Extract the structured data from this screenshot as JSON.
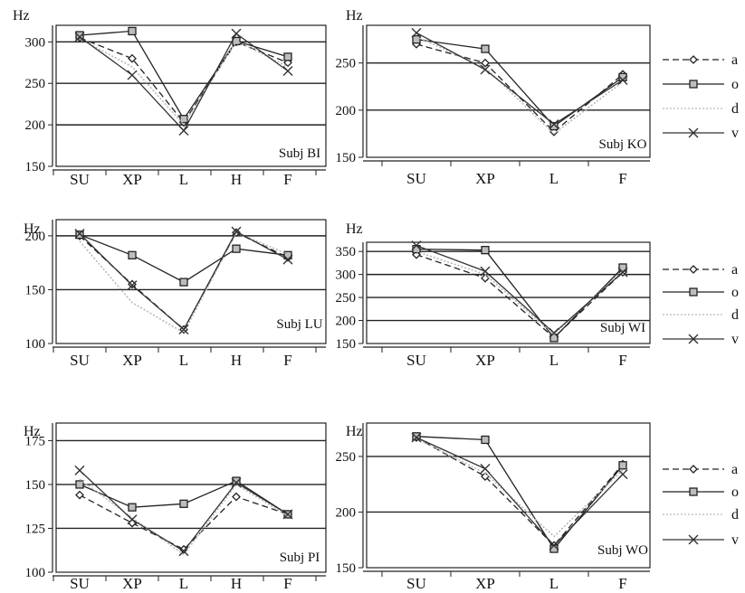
{
  "legend": [
    {
      "key": "a",
      "label": "a",
      "color": "#222222",
      "dash": "7,4",
      "marker": "diamond"
    },
    {
      "key": "o",
      "label": "o",
      "color": "#222222",
      "dash": "",
      "marker": "square"
    },
    {
      "key": "d",
      "label": "d",
      "color": "#b8b8b8",
      "dash": "2,2",
      "marker": "none"
    },
    {
      "key": "v",
      "label": "v",
      "color": "#333333",
      "dash": "",
      "marker": "cross"
    }
  ],
  "chart_data": [
    {
      "type": "line",
      "subject": "Subj BI",
      "ylabel": "Hz",
      "ylim": [
        150,
        320
      ],
      "yticks": [
        150,
        200,
        250,
        300
      ],
      "gridlines": [
        200,
        250,
        300
      ],
      "categories": [
        "SU",
        "XP",
        "L",
        "H",
        "F"
      ],
      "series": [
        {
          "name": "a",
          "values": [
            305,
            280,
            203,
            300,
            275
          ]
        },
        {
          "name": "o",
          "values": [
            308,
            313,
            207,
            301,
            282
          ]
        },
        {
          "name": "d",
          "values": [
            304,
            270,
            200,
            301,
            270
          ]
        },
        {
          "name": "v",
          "values": [
            306,
            260,
            193,
            310,
            265
          ]
        }
      ]
    },
    {
      "type": "line",
      "subject": "Subj KO",
      "ylabel": "Hz",
      "ylim": [
        150,
        290
      ],
      "yticks": [
        150,
        200,
        250
      ],
      "gridlines": [
        200,
        250
      ],
      "categories": [
        "SU",
        "XP",
        "L",
        "F"
      ],
      "series": [
        {
          "name": "a",
          "values": [
            270,
            250,
            177,
            238
          ]
        },
        {
          "name": "o",
          "values": [
            275,
            265,
            183,
            235
          ]
        },
        {
          "name": "d",
          "values": [
            278,
            245,
            175,
            230
          ]
        },
        {
          "name": "v",
          "values": [
            282,
            243,
            185,
            232
          ]
        }
      ]
    },
    {
      "type": "line",
      "subject": "Subj LU",
      "ylabel": "Hz",
      "ylim": [
        100,
        215
      ],
      "yticks": [
        100,
        150,
        200
      ],
      "gridlines": [
        150,
        200
      ],
      "categories": [
        "SU",
        "XP",
        "L",
        "H",
        "F"
      ],
      "series": [
        {
          "name": "a",
          "values": [
            200,
            155,
            113,
            203,
            180
          ]
        },
        {
          "name": "o",
          "values": [
            201,
            182,
            157,
            188,
            182
          ]
        },
        {
          "name": "d",
          "values": [
            195,
            138,
            110,
            203,
            183
          ]
        },
        {
          "name": "v",
          "values": [
            202,
            154,
            113,
            204,
            178
          ]
        }
      ]
    },
    {
      "type": "line",
      "subject": "Subj WI",
      "ylabel": "Hz",
      "ylim": [
        150,
        370
      ],
      "yticks": [
        150,
        200,
        250,
        300,
        350
      ],
      "gridlines": [
        200,
        250,
        300,
        350
      ],
      "categories": [
        "SU",
        "XP",
        "L",
        "F"
      ],
      "series": [
        {
          "name": "a",
          "values": [
            343,
            292,
            163,
            305
          ]
        },
        {
          "name": "o",
          "values": [
            355,
            353,
            162,
            315
          ]
        },
        {
          "name": "d",
          "values": [
            350,
            300,
            170,
            308
          ]
        },
        {
          "name": "v",
          "values": [
            363,
            307,
            173,
            305
          ]
        }
      ]
    },
    {
      "type": "line",
      "subject": "Subj PI",
      "ylabel": "Hz",
      "ylim": [
        100,
        185
      ],
      "yticks": [
        100,
        125,
        150,
        175
      ],
      "gridlines": [
        125,
        150,
        175
      ],
      "categories": [
        "SU",
        "XP",
        "L",
        "H",
        "F"
      ],
      "series": [
        {
          "name": "a",
          "values": [
            144,
            128,
            113,
            143,
            133
          ]
        },
        {
          "name": "o",
          "values": [
            150,
            137,
            139,
            152,
            133
          ]
        },
        {
          "name": "d",
          "values": [
            153,
            131,
            110,
            150,
            132
          ]
        },
        {
          "name": "v",
          "values": [
            158,
            130,
            112,
            151,
            133
          ]
        }
      ]
    },
    {
      "type": "line",
      "subject": "Subj WO",
      "ylabel": "Hz",
      "ylim": [
        150,
        280
      ],
      "yticks": [
        150,
        200,
        250
      ],
      "gridlines": [
        200,
        250
      ],
      "categories": [
        "SU",
        "XP",
        "L",
        "F"
      ],
      "series": [
        {
          "name": "a",
          "values": [
            267,
            232,
            170,
            243
          ]
        },
        {
          "name": "o",
          "values": [
            268,
            265,
            167,
            242
          ]
        },
        {
          "name": "d",
          "values": [
            266,
            235,
            178,
            238
          ]
        },
        {
          "name": "v",
          "values": [
            267,
            239,
            170,
            234
          ]
        }
      ]
    }
  ]
}
